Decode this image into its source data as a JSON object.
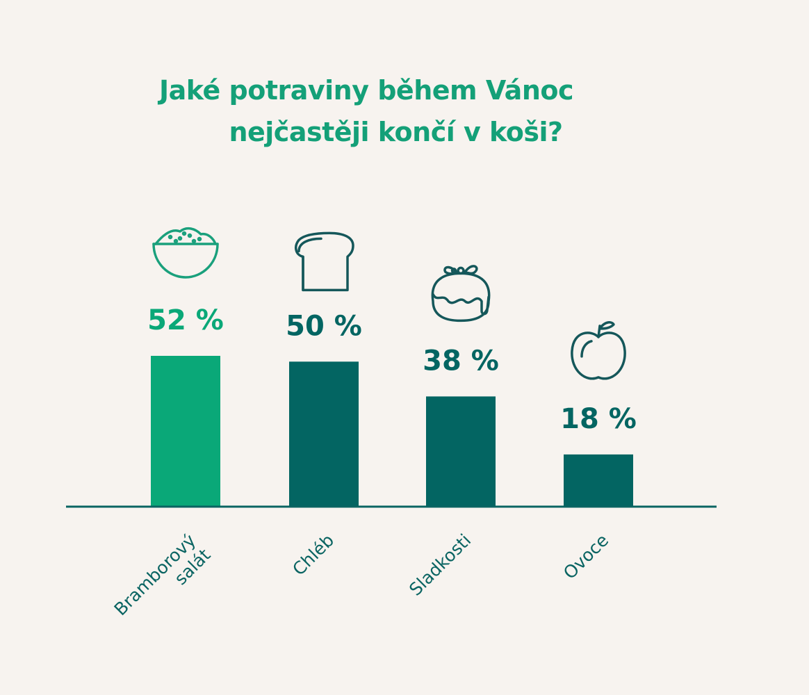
{
  "title": {
    "line1": "Jaké potraviny během Vánoc",
    "line2": "nejčastěji končí v koši?"
  },
  "colors": {
    "background": "#f7f3ef",
    "title": "#14a078",
    "highlight_bar": "#0aa878",
    "bar": "#036562",
    "highlight_icon": "#1aa07c",
    "icon": "#15575a",
    "axis": "#0a6462"
  },
  "chart_data": {
    "type": "bar",
    "categories": [
      "Bramborový salát",
      "Chléb",
      "Sladkosti",
      "Ovoce"
    ],
    "category_lines": [
      [
        "Bramborový",
        "salát"
      ],
      [
        "Chléb"
      ],
      [
        "Sladkosti"
      ],
      [
        "Ovoce"
      ]
    ],
    "values": [
      52,
      50,
      38,
      18
    ],
    "value_labels": [
      "52 %",
      "50 %",
      "38 %",
      "18 %"
    ],
    "icons": [
      "salad-bowl-icon",
      "bread-icon",
      "pudding-icon",
      "apple-icon"
    ],
    "highlight_index": 0,
    "unit": "%",
    "ylim": [
      0,
      52
    ],
    "grid": false,
    "legend": "none"
  }
}
